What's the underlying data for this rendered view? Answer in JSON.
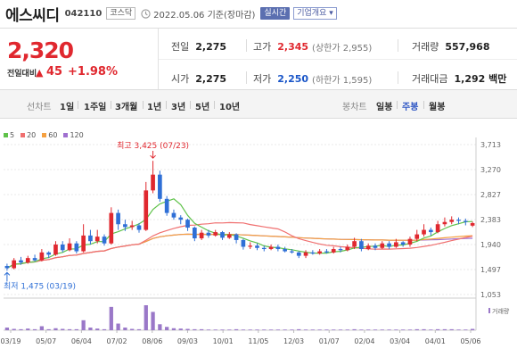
{
  "header": {
    "stock_name": "에스씨디",
    "stock_code": "042110",
    "market": "코스닥",
    "date_text": "2022.05.06 기준(장마감)",
    "realtime_btn": "실시간",
    "corp_btn": "기업개요 ▾"
  },
  "price": {
    "current": "2,320",
    "change_label": "전일대비",
    "change_arrow": "▲",
    "change": "45",
    "change_pct": "+1.98%"
  },
  "stats": {
    "prev_close_label": "전일",
    "prev_close": "2,275",
    "high_label": "고가",
    "high": "2,345",
    "upper_limit": "(상한가 2,955)",
    "volume_label": "거래량",
    "volume": "557,968",
    "open_label": "시가",
    "open": "2,275",
    "low_label": "저가",
    "low": "2,250",
    "lower_limit": "(하한가 1,595)",
    "amount_label": "거래대금",
    "amount": "1,292 백만"
  },
  "period_bar": {
    "line_label": "선차트",
    "line_periods": [
      "1일",
      "1주일",
      "3개월",
      "1년",
      "3년",
      "5년",
      "10년"
    ],
    "candle_label": "봉차트",
    "candle_periods": [
      "일봉",
      "주봉",
      "월봉"
    ],
    "selected_candle": "주봉"
  },
  "colors": {
    "up": "#e0282f",
    "down": "#2f6fd6",
    "ma5": "#5fc24a",
    "ma20": "#f07070",
    "ma60": "#f5a040",
    "ma120": "#a070d0"
  },
  "chart_data": {
    "type": "candlestick",
    "period": "weekly",
    "legend": [
      "5",
      "20",
      "60",
      "120"
    ],
    "y_ticks": [
      "3,713",
      "3,270",
      "2,827",
      "2,383",
      "1,940",
      "1,497",
      "1,053"
    ],
    "ylim": [
      1053,
      3713
    ],
    "x_ticks": [
      "03/19",
      "05/07",
      "06/04",
      "07/02",
      "08/06",
      "09/03",
      "10/01",
      "11/05",
      "12/03",
      "01/07",
      "02/04",
      "03/04",
      "04/01",
      "05/06"
    ],
    "high_annotation": "최고 3,425 (07/23)",
    "low_annotation": "최저 1,475 (03/19)",
    "volume_label": "거래량",
    "candles": [
      {
        "o": 1560,
        "c": 1520,
        "h": 1600,
        "l": 1475
      },
      {
        "o": 1520,
        "c": 1660,
        "h": 1700,
        "l": 1500
      },
      {
        "o": 1660,
        "c": 1620,
        "h": 1720,
        "l": 1580
      },
      {
        "o": 1620,
        "c": 1700,
        "h": 1740,
        "l": 1600
      },
      {
        "o": 1700,
        "c": 1660,
        "h": 1760,
        "l": 1640
      },
      {
        "o": 1660,
        "c": 1800,
        "h": 1860,
        "l": 1640
      },
      {
        "o": 1800,
        "c": 1760,
        "h": 1820,
        "l": 1700
      },
      {
        "o": 1760,
        "c": 1940,
        "h": 2000,
        "l": 1740
      },
      {
        "o": 1940,
        "c": 1840,
        "h": 2000,
        "l": 1800
      },
      {
        "o": 1840,
        "c": 1960,
        "h": 2050,
        "l": 1820
      },
      {
        "o": 1960,
        "c": 1820,
        "h": 2000,
        "l": 1780
      },
      {
        "o": 1820,
        "c": 2100,
        "h": 2300,
        "l": 1800
      },
      {
        "o": 2100,
        "c": 2000,
        "h": 2200,
        "l": 1940
      },
      {
        "o": 2000,
        "c": 2080,
        "h": 2200,
        "l": 1960
      },
      {
        "o": 2080,
        "c": 1960,
        "h": 2120,
        "l": 1920
      },
      {
        "o": 1960,
        "c": 2500,
        "h": 2600,
        "l": 1940
      },
      {
        "o": 2500,
        "c": 2300,
        "h": 2560,
        "l": 2200
      },
      {
        "o": 2300,
        "c": 2250,
        "h": 2380,
        "l": 2180
      },
      {
        "o": 2250,
        "c": 2280,
        "h": 2360,
        "l": 2200
      },
      {
        "o": 2280,
        "c": 2200,
        "h": 2320,
        "l": 2150
      },
      {
        "o": 2200,
        "c": 2900,
        "h": 3050,
        "l": 2180
      },
      {
        "o": 2900,
        "c": 3180,
        "h": 3425,
        "l": 2850
      },
      {
        "o": 3180,
        "c": 2750,
        "h": 3250,
        "l": 2700
      },
      {
        "o": 2750,
        "c": 2500,
        "h": 2800,
        "l": 2450
      },
      {
        "o": 2500,
        "c": 2420,
        "h": 2560,
        "l": 2380
      },
      {
        "o": 2420,
        "c": 2380,
        "h": 2460,
        "l": 2300
      },
      {
        "o": 2380,
        "c": 2240,
        "h": 2400,
        "l": 2180
      },
      {
        "o": 2240,
        "c": 2050,
        "h": 2260,
        "l": 2000
      },
      {
        "o": 2050,
        "c": 2150,
        "h": 2200,
        "l": 2020
      },
      {
        "o": 2150,
        "c": 2100,
        "h": 2200,
        "l": 2060
      },
      {
        "o": 2100,
        "c": 2160,
        "h": 2200,
        "l": 2080
      },
      {
        "o": 2160,
        "c": 2060,
        "h": 2180,
        "l": 2020
      },
      {
        "o": 2060,
        "c": 2120,
        "h": 2160,
        "l": 2040
      },
      {
        "o": 2120,
        "c": 2020,
        "h": 2140,
        "l": 1960
      },
      {
        "o": 2020,
        "c": 1900,
        "h": 2040,
        "l": 1850
      },
      {
        "o": 1900,
        "c": 1920,
        "h": 1980,
        "l": 1860
      },
      {
        "o": 1920,
        "c": 1880,
        "h": 1960,
        "l": 1840
      },
      {
        "o": 1880,
        "c": 1860,
        "h": 1920,
        "l": 1820
      },
      {
        "o": 1860,
        "c": 1900,
        "h": 1940,
        "l": 1840
      },
      {
        "o": 1900,
        "c": 1860,
        "h": 1940,
        "l": 1820
      },
      {
        "o": 1860,
        "c": 1820,
        "h": 1900,
        "l": 1800
      },
      {
        "o": 1820,
        "c": 1800,
        "h": 1860,
        "l": 1780
      },
      {
        "o": 1800,
        "c": 1740,
        "h": 1820,
        "l": 1700
      },
      {
        "o": 1740,
        "c": 1800,
        "h": 1840,
        "l": 1700
      },
      {
        "o": 1800,
        "c": 1780,
        "h": 1840,
        "l": 1760
      },
      {
        "o": 1780,
        "c": 1820,
        "h": 1860,
        "l": 1760
      },
      {
        "o": 1820,
        "c": 1800,
        "h": 1860,
        "l": 1780
      },
      {
        "o": 1800,
        "c": 1860,
        "h": 1900,
        "l": 1780
      },
      {
        "o": 1860,
        "c": 1840,
        "h": 1900,
        "l": 1800
      },
      {
        "o": 1840,
        "c": 1900,
        "h": 1940,
        "l": 1820
      },
      {
        "o": 1900,
        "c": 2000,
        "h": 2060,
        "l": 1860
      },
      {
        "o": 2000,
        "c": 1860,
        "h": 2040,
        "l": 1820
      },
      {
        "o": 1860,
        "c": 1920,
        "h": 1960,
        "l": 1840
      },
      {
        "o": 1920,
        "c": 1880,
        "h": 1960,
        "l": 1840
      },
      {
        "o": 1880,
        "c": 1960,
        "h": 2000,
        "l": 1860
      },
      {
        "o": 1960,
        "c": 1900,
        "h": 2000,
        "l": 1860
      },
      {
        "o": 1900,
        "c": 1980,
        "h": 2040,
        "l": 1880
      },
      {
        "o": 1980,
        "c": 1940,
        "h": 2000,
        "l": 1900
      },
      {
        "o": 1940,
        "c": 2040,
        "h": 2080,
        "l": 1900
      },
      {
        "o": 2040,
        "c": 2120,
        "h": 2200,
        "l": 2000
      },
      {
        "o": 2120,
        "c": 2200,
        "h": 2300,
        "l": 2080
      },
      {
        "o": 2200,
        "c": 2160,
        "h": 2240,
        "l": 2100
      },
      {
        "o": 2160,
        "c": 2300,
        "h": 2360,
        "l": 2140
      },
      {
        "o": 2300,
        "c": 2340,
        "h": 2420,
        "l": 2260
      },
      {
        "o": 2340,
        "c": 2380,
        "h": 2440,
        "l": 2300
      },
      {
        "o": 2380,
        "c": 2360,
        "h": 2420,
        "l": 2300
      },
      {
        "o": 2360,
        "c": 2340,
        "h": 2400,
        "l": 2280
      },
      {
        "o": 2275,
        "c": 2320,
        "h": 2345,
        "l": 2250
      }
    ],
    "volume": [
      8,
      4,
      3,
      5,
      3,
      12,
      3,
      6,
      4,
      3,
      3,
      30,
      8,
      5,
      3,
      70,
      20,
      8,
      4,
      3,
      75,
      55,
      18,
      10,
      6,
      5,
      4,
      3,
      3,
      2,
      2,
      2,
      2,
      3,
      2,
      2,
      2,
      2,
      2,
      2,
      2,
      2,
      3,
      2,
      2,
      2,
      2,
      2,
      2,
      2,
      3,
      2,
      2,
      2,
      2,
      2,
      2,
      2,
      2,
      3,
      3,
      2,
      3,
      3,
      3,
      2,
      2,
      4
    ]
  }
}
